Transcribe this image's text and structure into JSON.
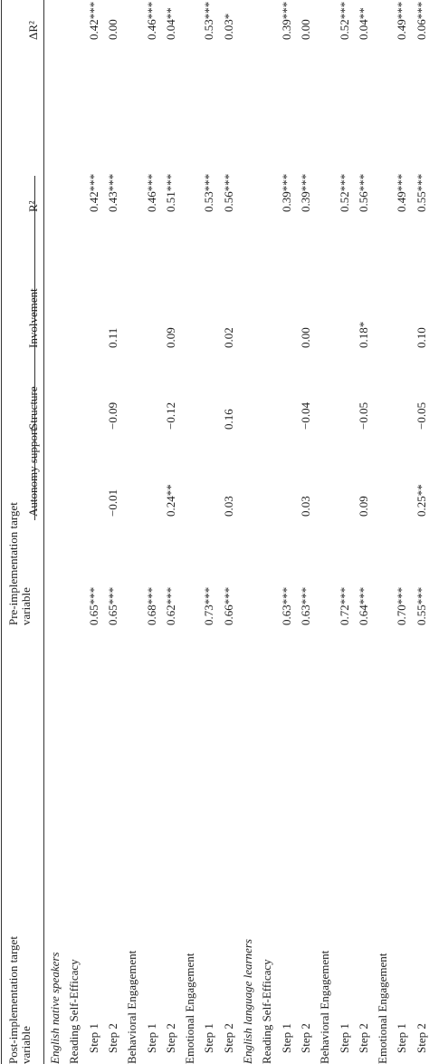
{
  "header": {
    "columns": [
      "Post-implementation target variable",
      "Pre-implementation target variable",
      "Autonomy support",
      "Structure",
      "Involvement",
      "R²",
      "ΔR²"
    ]
  },
  "groups": [
    {
      "title": "English native speakers",
      "variables": [
        {
          "name": "Reading Self-Efficacy",
          "steps": [
            {
              "label": "Step 1",
              "pre": "0.65***",
              "r2": "0.42***",
              "dr2": "0.42***"
            },
            {
              "label": "Step 2",
              "pre": "0.65***",
              "autonomy": "−0.01",
              "structure": "−0.09",
              "involvement": "0.11",
              "r2": "0.43***",
              "dr2": "0.00"
            }
          ]
        },
        {
          "name": "Behavioral Engagement",
          "steps": [
            {
              "label": "Step 1",
              "pre": "0.68***",
              "r2": "0.46***",
              "dr2": "0.46***"
            },
            {
              "label": "Step 2",
              "pre": "0.62***",
              "autonomy": "0.24**",
              "structure": "−0.12",
              "involvement": "0.09",
              "r2": "0.51***",
              "dr2": "0.04**"
            }
          ]
        },
        {
          "name": "Emotional Engagement",
          "steps": [
            {
              "label": "Step 1",
              "pre": "0.73***",
              "r2": "0.53***",
              "dr2": "0.53***"
            },
            {
              "label": "Step 2",
              "pre": "0.66***",
              "autonomy": "0.03",
              "structure": "0.16",
              "involvement": "0.02",
              "r2": "0.56***",
              "dr2": "0.03*"
            }
          ]
        }
      ]
    },
    {
      "title": "English language learners",
      "variables": [
        {
          "name": "Reading Self-Efficacy",
          "steps": [
            {
              "label": "Step 1",
              "pre": "0.63***",
              "r2": "0.39***",
              "dr2": "0.39***"
            },
            {
              "label": "Step 2",
              "pre": "0.63***",
              "autonomy": "0.03",
              "structure": "−0.04",
              "involvement": "0.00",
              "r2": "0.39***",
              "dr2": "0.00"
            }
          ]
        },
        {
          "name": "Behavioral Engagement",
          "steps": [
            {
              "label": "Step 1",
              "pre": "0.72***",
              "r2": "0.52***",
              "dr2": "0.52***"
            },
            {
              "label": "Step 2",
              "pre": "0.64***",
              "autonomy": "0.09",
              "structure": "−0.05",
              "involvement": "0.18*",
              "r2": "0.56***",
              "dr2": "0.04**"
            }
          ]
        },
        {
          "name": "Emotional Engagement",
          "steps": [
            {
              "label": "Step 1",
              "pre": "0.70***",
              "r2": "0.49***",
              "dr2": "0.49***"
            },
            {
              "label": "Step 2",
              "pre": "0.55***",
              "autonomy": "0.25**",
              "structure": "−0.05",
              "involvement": "0.10",
              "r2": "0.55***",
              "dr2": "0.06***"
            }
          ]
        }
      ]
    }
  ]
}
